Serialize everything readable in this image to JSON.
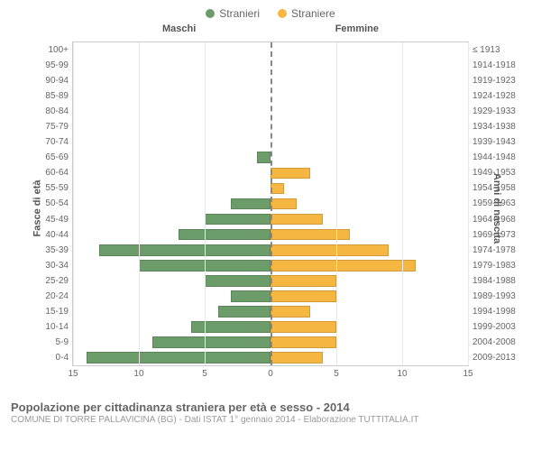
{
  "legend": {
    "male": {
      "label": "Stranieri",
      "color": "#6b9c6a"
    },
    "female": {
      "label": "Straniere",
      "color": "#f5b742"
    }
  },
  "headers": {
    "male": "Maschi",
    "female": "Femmine"
  },
  "axes": {
    "left_title": "Fasce di età",
    "right_title": "Anni di nascita",
    "xmax": 15,
    "xticks": [
      15,
      10,
      5,
      0,
      5,
      10,
      15
    ]
  },
  "colors": {
    "male_bar": "#6b9c6a",
    "female_bar": "#f5b742",
    "grid": "#e8e8e8",
    "center_line": "#888888",
    "background": "#ffffff"
  },
  "rows": [
    {
      "age": "100+",
      "birth": "≤ 1913",
      "m": 0,
      "f": 0
    },
    {
      "age": "95-99",
      "birth": "1914-1918",
      "m": 0,
      "f": 0
    },
    {
      "age": "90-94",
      "birth": "1919-1923",
      "m": 0,
      "f": 0
    },
    {
      "age": "85-89",
      "birth": "1924-1928",
      "m": 0,
      "f": 0
    },
    {
      "age": "80-84",
      "birth": "1929-1933",
      "m": 0,
      "f": 0
    },
    {
      "age": "75-79",
      "birth": "1934-1938",
      "m": 0,
      "f": 0
    },
    {
      "age": "70-74",
      "birth": "1939-1943",
      "m": 0,
      "f": 0
    },
    {
      "age": "65-69",
      "birth": "1944-1948",
      "m": 1,
      "f": 0
    },
    {
      "age": "60-64",
      "birth": "1949-1953",
      "m": 0,
      "f": 3
    },
    {
      "age": "55-59",
      "birth": "1954-1958",
      "m": 0,
      "f": 1
    },
    {
      "age": "50-54",
      "birth": "1959-1963",
      "m": 3,
      "f": 2
    },
    {
      "age": "45-49",
      "birth": "1964-1968",
      "m": 5,
      "f": 4
    },
    {
      "age": "40-44",
      "birth": "1969-1973",
      "m": 7,
      "f": 6
    },
    {
      "age": "35-39",
      "birth": "1974-1978",
      "m": 13,
      "f": 9
    },
    {
      "age": "30-34",
      "birth": "1979-1983",
      "m": 10,
      "f": 11
    },
    {
      "age": "25-29",
      "birth": "1984-1988",
      "m": 5,
      "f": 5
    },
    {
      "age": "20-24",
      "birth": "1989-1993",
      "m": 3,
      "f": 5
    },
    {
      "age": "15-19",
      "birth": "1994-1998",
      "m": 4,
      "f": 3
    },
    {
      "age": "10-14",
      "birth": "1999-2003",
      "m": 6,
      "f": 5
    },
    {
      "age": "5-9",
      "birth": "2004-2008",
      "m": 9,
      "f": 5
    },
    {
      "age": "0-4",
      "birth": "2009-2013",
      "m": 14,
      "f": 4
    }
  ],
  "footer": {
    "title": "Popolazione per cittadinanza straniera per età e sesso - 2014",
    "subtitle": "COMUNE DI TORRE PALLAVICINA (BG) - Dati ISTAT 1° gennaio 2014 - Elaborazione TUTTITALIA.IT"
  }
}
